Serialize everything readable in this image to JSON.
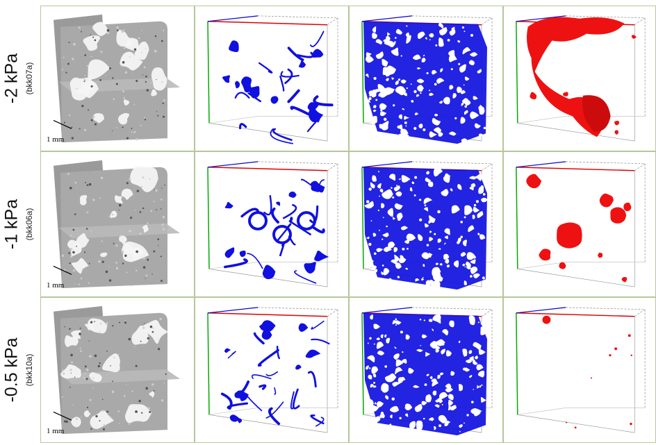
{
  "rows": [
    {
      "pressure": "-2 kPa",
      "sample": "(bkk07a)",
      "scale_label": "1 mm"
    },
    {
      "pressure": "-1 kPa",
      "sample": "(bkk06a)",
      "scale_label": "1 mm"
    },
    {
      "pressure": "-0.5 kPa",
      "sample": "(bkk10a)",
      "scale_label": "1 mm"
    }
  ],
  "colors": {
    "ct_gray": "#a9a9a9",
    "pore_blue": "#1010e0",
    "bubble_red": "#ee1111",
    "axis_x": "#dd0000",
    "axis_y": "#00aa00",
    "axis_z": "#0000cc",
    "border": "#b6c79b"
  },
  "columns": [
    "ct-slice-gray",
    "pore-skeleton-blue",
    "pore-network-blue",
    "isolated-pores-red"
  ]
}
